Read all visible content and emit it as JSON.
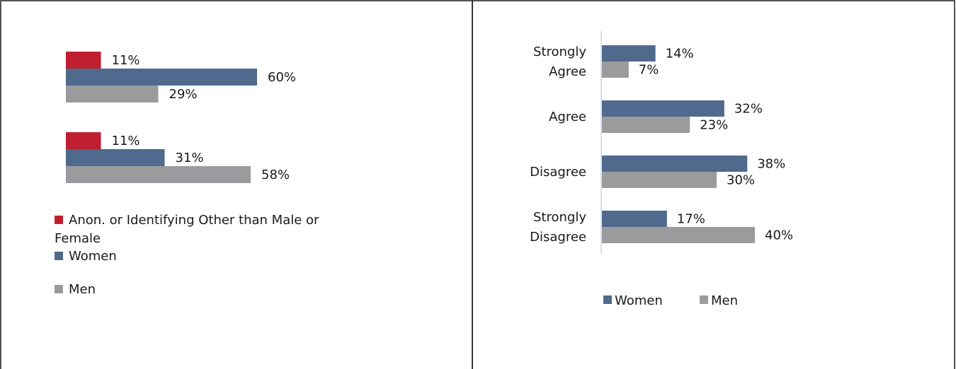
{
  "colors": {
    "anon": "#c01f2f",
    "women": "#4f6a8c",
    "men": "#9b9b9d",
    "axis": "#bdd7ee"
  },
  "chart_data": [
    {
      "type": "bar",
      "orientation": "horizontal",
      "title": "",
      "xlabel": "",
      "ylabel": "",
      "categories": [
        "",
        ""
      ],
      "series": [
        {
          "name": "Anon. or Identifying Other than Male or Female",
          "color": "anon",
          "values": [
            11,
            11
          ],
          "labels": [
            "11%",
            "11%"
          ]
        },
        {
          "name": "Women",
          "color": "women",
          "values": [
            60,
            31
          ],
          "labels": [
            "60%",
            "31%"
          ]
        },
        {
          "name": "Men",
          "color": "men",
          "values": [
            29,
            58
          ],
          "labels": [
            "29%",
            "58%"
          ]
        }
      ],
      "legend": {
        "position": "bottom-left",
        "entries": [
          {
            "lines": [
              "Anon. or Identifying Other than Male or",
              "Female"
            ],
            "color": "anon"
          },
          {
            "lines": [
              "Women"
            ],
            "color": "women"
          },
          {
            "lines": [
              "Men"
            ],
            "color": "men"
          }
        ]
      },
      "grid": false
    },
    {
      "type": "bar",
      "orientation": "horizontal",
      "title": "",
      "xlabel": "",
      "ylabel": "",
      "categories": [
        [
          "Strongly",
          "Agree"
        ],
        [
          "Agree"
        ],
        [
          "Disagree"
        ],
        [
          "Strongly",
          "Disagree"
        ]
      ],
      "series": [
        {
          "name": "Women",
          "color": "women",
          "values": [
            14,
            32,
            38,
            17
          ],
          "labels": [
            "14%",
            "32%",
            "38%",
            "17%"
          ]
        },
        {
          "name": "Men",
          "color": "men",
          "values": [
            7,
            23,
            30,
            40
          ],
          "labels": [
            "7%",
            "23%",
            "30%",
            "40%"
          ]
        }
      ],
      "legend": {
        "position": "bottom",
        "entries": [
          {
            "lines": [
              "Women"
            ],
            "color": "women"
          },
          {
            "lines": [
              "Men"
            ],
            "color": "men"
          }
        ]
      },
      "grid": false
    }
  ]
}
